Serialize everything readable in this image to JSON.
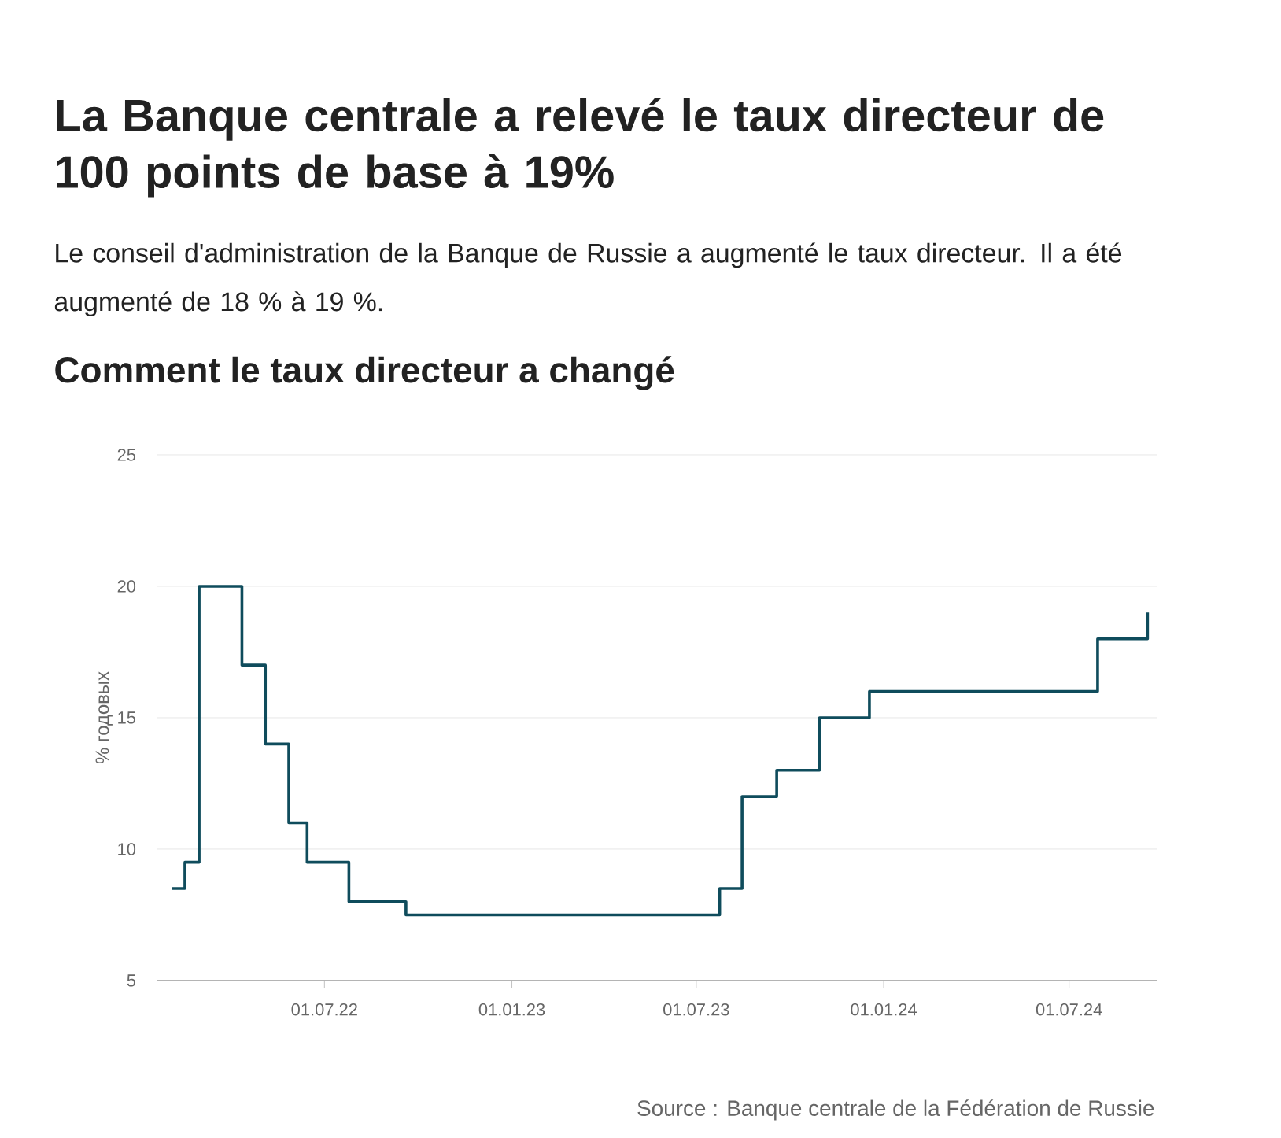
{
  "chart_data": {
    "type": "step",
    "title": "La Banque centrale a relevé le taux directeur de 100 points de base à 19%",
    "subtitle": "Le conseil d'administration de la Banque de Russie a augmenté le taux directeur. Il a été augmenté de 18 % à 19 %.",
    "annotations": [
      "Comment le taux directeur a changé",
      "Source : Banque centrale de la Fédération de Russie"
    ],
    "ylabel": "% годовых",
    "x": [
      "2022-02-01",
      "2022-02-14",
      "2022-02-28",
      "2022-04-11",
      "2022-05-04",
      "2022-05-27",
      "2022-06-14",
      "2022-07-25",
      "2022-09-19",
      "2023-07-24",
      "2023-08-15",
      "2023-09-18",
      "2023-10-30",
      "2023-12-18",
      "2024-07-29",
      "2024-09-16"
    ],
    "values": [
      8.5,
      9.5,
      20,
      17,
      14,
      11,
      9.5,
      8,
      7.5,
      8.5,
      12,
      13,
      15,
      16,
      18,
      19
    ],
    "color": "#0f4c5c",
    "xlim": [
      "2022-01-18",
      "2024-09-25"
    ],
    "xticks": [
      {
        "value": "2022-07-01",
        "label": "01.07.22"
      },
      {
        "value": "2023-01-01",
        "label": "01.01.23"
      },
      {
        "value": "2023-07-01",
        "label": "01.07.23"
      },
      {
        "value": "2024-01-01",
        "label": "01.01.24"
      },
      {
        "value": "2024-07-01",
        "label": "01.07.24"
      }
    ],
    "ylim": [
      5,
      25
    ],
    "yticks": [
      5,
      10,
      15,
      20,
      25
    ],
    "grid": "y",
    "line_style": "solid"
  }
}
